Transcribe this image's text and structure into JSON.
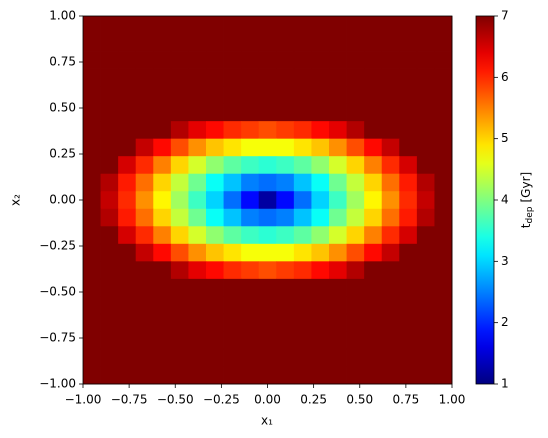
{
  "chart_data": {
    "type": "heatmap",
    "colormap": "jet",
    "xlabel": "x₁",
    "ylabel": "x₂",
    "colorbar_label": {
      "symbol": "t",
      "subscript": "dep",
      "unit": "[Gyr]"
    },
    "xlim": [
      -1,
      1
    ],
    "ylim": [
      -1,
      1
    ],
    "clim": [
      1,
      7
    ],
    "xticks": [
      {
        "value": -1,
        "label": "−1.00"
      },
      {
        "value": -0.75,
        "label": "−0.75"
      },
      {
        "value": -0.5,
        "label": "−0.50"
      },
      {
        "value": -0.25,
        "label": "−0.25"
      },
      {
        "value": 0,
        "label": "0.00"
      },
      {
        "value": 0.25,
        "label": "0.25"
      },
      {
        "value": 0.5,
        "label": "0.50"
      },
      {
        "value": 0.75,
        "label": "0.75"
      },
      {
        "value": 1,
        "label": "1.00"
      }
    ],
    "yticks": [
      {
        "value": -1,
        "label": "−1.00"
      },
      {
        "value": -0.75,
        "label": "−0.75"
      },
      {
        "value": -0.5,
        "label": "−0.50"
      },
      {
        "value": -0.25,
        "label": "−0.25"
      },
      {
        "value": 0,
        "label": "0.00"
      },
      {
        "value": 0.25,
        "label": "0.25"
      },
      {
        "value": 0.5,
        "label": "0.50"
      },
      {
        "value": 0.75,
        "label": "0.75"
      },
      {
        "value": 1,
        "label": "1.00"
      }
    ],
    "cticks": [
      1,
      2,
      3,
      4,
      5,
      6,
      7
    ],
    "z": [
      [
        7,
        7,
        7,
        7,
        7,
        7,
        7,
        7,
        7,
        7,
        7,
        7,
        7,
        7,
        7,
        7,
        7,
        7,
        7,
        7,
        7
      ],
      [
        7,
        7,
        7,
        7,
        7,
        7,
        7,
        7,
        7,
        7,
        7,
        7,
        7,
        7,
        7,
        7,
        7,
        7,
        7,
        7,
        7
      ],
      [
        7,
        7,
        7,
        7,
        7,
        7,
        7,
        7,
        7,
        7,
        7,
        7,
        7,
        7,
        7,
        7,
        7,
        7,
        7,
        7,
        7
      ],
      [
        7,
        7,
        7,
        7,
        7,
        7,
        7,
        7,
        7,
        7,
        7,
        7,
        7,
        7,
        7,
        7,
        7,
        7,
        7,
        7,
        7
      ],
      [
        7,
        7,
        7,
        7,
        7,
        7,
        7,
        7,
        7,
        7,
        7,
        7,
        7,
        7,
        7,
        7,
        7,
        7,
        7,
        7,
        7
      ],
      [
        7,
        7,
        7,
        7,
        7,
        7,
        7,
        7,
        7,
        7,
        7,
        7,
        7,
        7,
        7,
        7,
        7,
        7,
        7,
        7,
        7
      ],
      [
        7,
        7,
        7,
        7,
        7,
        6.7,
        6.4,
        6.2,
        6.0,
        5.9,
        5.8,
        5.9,
        6.0,
        6.2,
        6.4,
        6.7,
        7,
        7,
        7,
        7,
        7
      ],
      [
        7,
        7,
        7,
        6.6,
        6.2,
        5.8,
        5.4,
        5.1,
        4.9,
        4.7,
        4.7,
        4.7,
        4.9,
        5.1,
        5.4,
        5.8,
        6.2,
        6.6,
        7,
        7,
        7
      ],
      [
        7,
        7,
        6.5,
        6.0,
        5.5,
        5.0,
        4.5,
        4.1,
        3.8,
        3.6,
        3.5,
        3.6,
        3.8,
        4.1,
        4.5,
        5.0,
        5.5,
        6.0,
        6.5,
        7,
        7
      ],
      [
        7,
        6.7,
        6.1,
        5.6,
        5.0,
        4.4,
        3.9,
        3.3,
        2.9,
        2.5,
        2.4,
        2.5,
        2.9,
        3.3,
        3.9,
        4.4,
        5.0,
        5.6,
        6.1,
        6.7,
        7
      ],
      [
        7,
        6.6,
        6.0,
        5.4,
        4.8,
        4.2,
        3.6,
        3.0,
        2.4,
        1.8,
        1.2,
        1.8,
        2.4,
        3.0,
        3.6,
        4.2,
        4.8,
        5.4,
        6.0,
        6.6,
        7
      ],
      [
        7,
        6.7,
        6.1,
        5.6,
        5.0,
        4.4,
        3.9,
        3.3,
        2.9,
        2.5,
        2.4,
        2.5,
        2.9,
        3.3,
        3.9,
        4.4,
        5.0,
        5.6,
        6.1,
        6.7,
        7
      ],
      [
        7,
        7,
        6.5,
        6.0,
        5.5,
        5.0,
        4.5,
        4.1,
        3.8,
        3.6,
        3.5,
        3.6,
        3.8,
        4.1,
        4.5,
        5.0,
        5.5,
        6.0,
        6.5,
        7,
        7
      ],
      [
        7,
        7,
        7,
        6.6,
        6.2,
        5.8,
        5.4,
        5.1,
        4.9,
        4.7,
        4.7,
        4.7,
        4.9,
        5.1,
        5.4,
        5.8,
        6.2,
        6.6,
        7,
        7,
        7
      ],
      [
        7,
        7,
        7,
        7,
        7,
        6.7,
        6.4,
        6.2,
        6.0,
        5.9,
        5.8,
        5.9,
        6.0,
        6.2,
        6.4,
        6.7,
        7,
        7,
        7,
        7,
        7
      ],
      [
        7,
        7,
        7,
        7,
        7,
        7,
        7,
        7,
        7,
        7,
        7,
        7,
        7,
        7,
        7,
        7,
        7,
        7,
        7,
        7,
        7
      ],
      [
        7,
        7,
        7,
        7,
        7,
        7,
        7,
        7,
        7,
        7,
        7,
        7,
        7,
        7,
        7,
        7,
        7,
        7,
        7,
        7,
        7
      ],
      [
        7,
        7,
        7,
        7,
        7,
        7,
        7,
        7,
        7,
        7,
        7,
        7,
        7,
        7,
        7,
        7,
        7,
        7,
        7,
        7,
        7
      ],
      [
        7,
        7,
        7,
        7,
        7,
        7,
        7,
        7,
        7,
        7,
        7,
        7,
        7,
        7,
        7,
        7,
        7,
        7,
        7,
        7,
        7
      ],
      [
        7,
        7,
        7,
        7,
        7,
        7,
        7,
        7,
        7,
        7,
        7,
        7,
        7,
        7,
        7,
        7,
        7,
        7,
        7,
        7,
        7
      ],
      [
        7,
        7,
        7,
        7,
        7,
        7,
        7,
        7,
        7,
        7,
        7,
        7,
        7,
        7,
        7,
        7,
        7,
        7,
        7,
        7,
        7
      ]
    ]
  }
}
